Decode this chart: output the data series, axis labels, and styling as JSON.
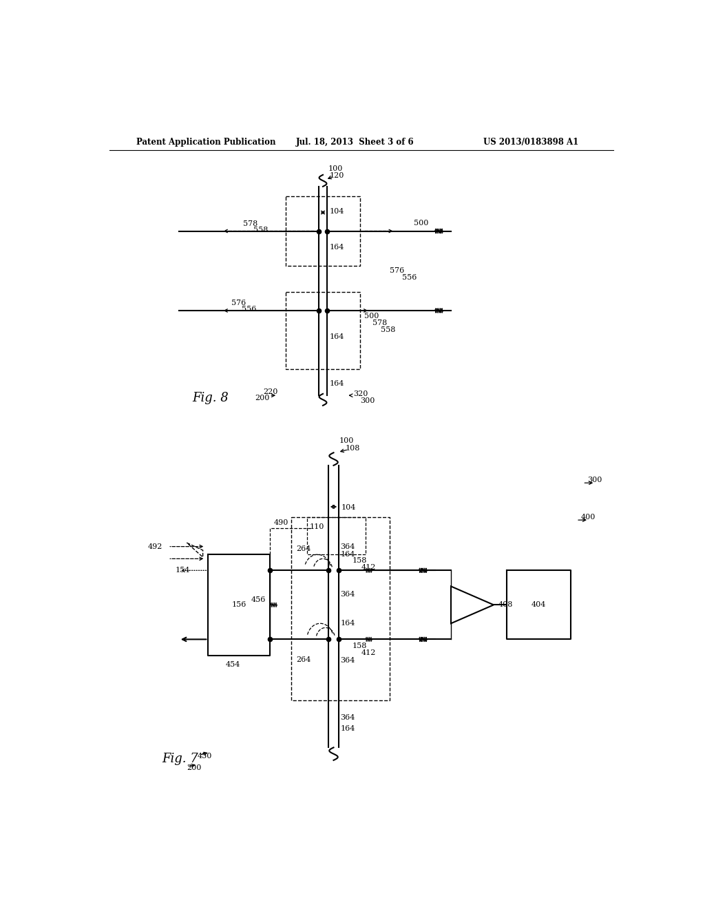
{
  "bg_color": "#ffffff",
  "header_left": "Patent Application Publication",
  "header_mid": "Jul. 18, 2013  Sheet 3 of 6",
  "header_right": "US 2013/0183898 A1"
}
